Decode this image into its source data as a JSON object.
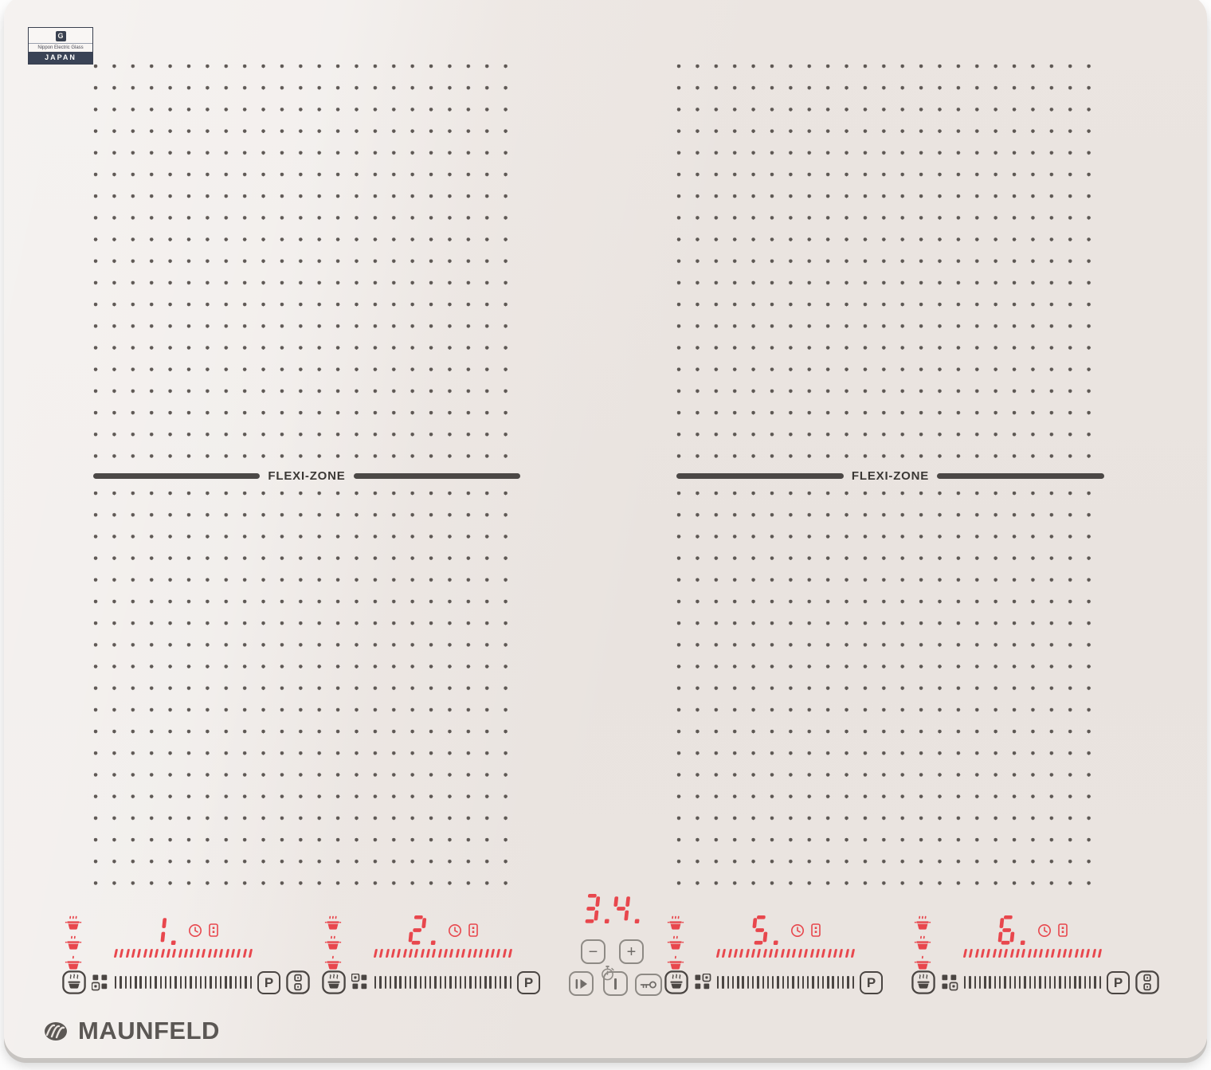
{
  "device": {
    "brand": "MAUNFELD",
    "type": "induction hob control surface"
  },
  "badge": {
    "logo_letter": "G",
    "maker": "Nippon Electric Glass",
    "country": "JAPAN"
  },
  "flexi": {
    "label": "FLEXI-ZONE"
  },
  "zones": [
    {
      "name": "zone-1",
      "display": "1.",
      "quadrant": "bottom-left",
      "boost_label": "P",
      "has_bridge": true
    },
    {
      "name": "zone-2",
      "display": "2.",
      "quadrant": "top-left",
      "boost_label": "P",
      "has_bridge": false
    },
    {
      "name": "zone-5",
      "display": "5.",
      "quadrant": "top-right",
      "boost_label": "P",
      "has_bridge": false
    },
    {
      "name": "zone-6",
      "display": "6.",
      "quadrant": "bottom-right",
      "boost_label": "P",
      "has_bridge": true
    }
  ],
  "center": {
    "timer_display": "3.4.",
    "minus_label": "−",
    "plus_label": "+"
  },
  "slider": {
    "tick_count": 28,
    "led_tick_count": 24
  },
  "keep_warm_levels": [
    3,
    2,
    1
  ],
  "icons": {
    "clock": "timer-clock",
    "timer_cell": "timer-digit-cell",
    "stopwatch": "stopwatch",
    "pause": "pause-play",
    "power": "power-bar",
    "lock": "key",
    "pot_button": "pot-with-steam",
    "bridge": "two-stacked-squares",
    "zone_position": "four-square-grid"
  },
  "colors": {
    "led_red": "#e8474d",
    "print_dark": "#4a4542",
    "panel_gray": "#8e8a85",
    "glass": "#e9e3df",
    "japan_bar": "#3a4356"
  }
}
